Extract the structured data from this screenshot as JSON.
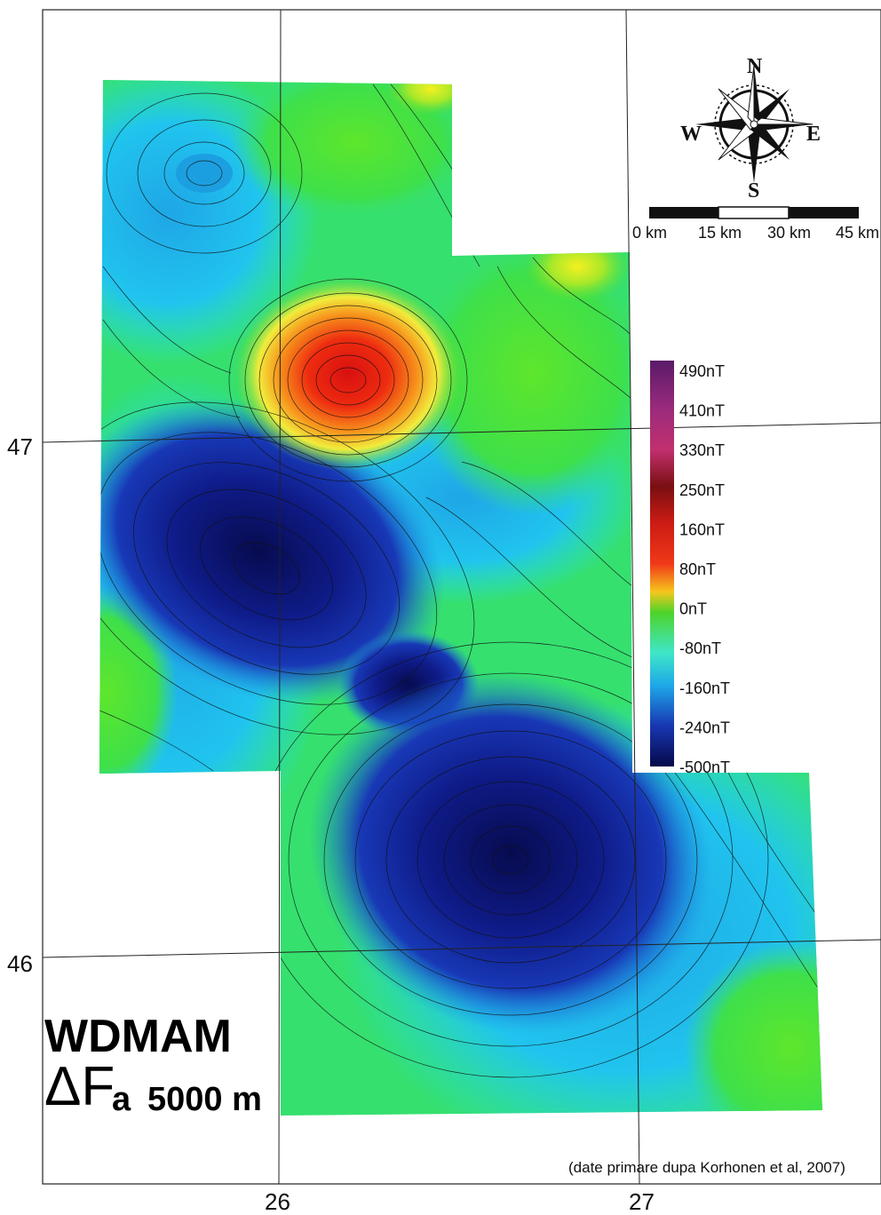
{
  "map": {
    "title_line1": "WDMAM",
    "title_symbol": "ΔF",
    "title_subscript": "a",
    "title_altitude": "5000 m",
    "source_note": "(date primare dupa Korhonen et al, 2007)",
    "latitude_labels": [
      "47",
      "46"
    ],
    "longitude_labels": [
      "26",
      "27"
    ]
  },
  "compass": {
    "north": "N",
    "south": "S",
    "east": "E",
    "west": "W"
  },
  "scale_bar": {
    "labels": [
      "0 km",
      "15 km",
      "30 km",
      "45 km"
    ]
  },
  "legend": {
    "labels": [
      "490nT",
      "410nT",
      "330nT",
      "250nT",
      "160nT",
      "80nT",
      "0nT",
      "-80nT",
      "-160nT",
      "-240nT",
      "-500nT"
    ],
    "colors_top_to_bottom": [
      "#6a1f6e",
      "#9b2b7c",
      "#c2306e",
      "#7a0f12",
      "#cc1b14",
      "#f03818",
      "#f6a51d",
      "#4ed42a",
      "#3fe6c8",
      "#1ea8e8",
      "#1837b2",
      "#0a0e5a"
    ]
  },
  "colors": {
    "frame": "#222222",
    "grid": "#222222",
    "contour": "#111111"
  }
}
